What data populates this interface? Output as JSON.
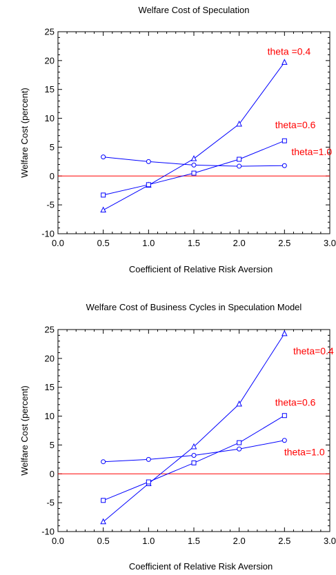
{
  "chart_data": [
    {
      "type": "line",
      "title": "Welfare Cost of Speculation",
      "xlabel": "Coefficient of Relative Risk Aversion",
      "ylabel": "Welfare Cost  (percent)",
      "xlim": [
        0.0,
        3.0
      ],
      "ylim": [
        -10,
        25
      ],
      "x_ticks": [
        "0.0",
        "0.5",
        "1.0",
        "1.5",
        "2.0",
        "2.5",
        "3.0"
      ],
      "y_ticks": [
        "-10",
        "-5",
        "0",
        "5",
        "10",
        "15",
        "20",
        "25"
      ],
      "grid": false,
      "zero_line": {
        "y": 0,
        "color": "#ff0000"
      },
      "series_color": "#0000ff",
      "series": [
        {
          "marker": "triangle",
          "x": [
            0.5,
            1.0,
            1.5,
            2.0,
            2.5
          ],
          "y": [
            -5.9,
            -1.6,
            3.0,
            9.0,
            19.7
          ]
        },
        {
          "marker": "square",
          "x": [
            0.5,
            1.0,
            1.5,
            2.0,
            2.5
          ],
          "y": [
            -3.3,
            -1.5,
            0.5,
            2.9,
            6.1
          ]
        },
        {
          "marker": "circle",
          "x": [
            0.5,
            1.0,
            1.5,
            2.0,
            2.5
          ],
          "y": [
            3.3,
            2.5,
            1.9,
            1.7,
            1.8
          ]
        }
      ],
      "annotations": [
        {
          "text": "theta =0.4",
          "x": 2.55,
          "y": 21.0
        },
        {
          "text": "theta=0.6",
          "x": 2.62,
          "y": 8.3
        },
        {
          "text": "theta=1.0",
          "x": 2.8,
          "y": 3.6
        }
      ]
    },
    {
      "type": "line",
      "title": "Welfare Cost of Business Cycles in Speculation Model",
      "xlabel": "Coefficient of Relative Risk Aversion",
      "ylabel": "Welfare Cost  (percent)",
      "xlim": [
        0.0,
        3.0
      ],
      "ylim": [
        -10,
        25
      ],
      "x_ticks": [
        "0.0",
        "0.5",
        "1.0",
        "1.5",
        "2.0",
        "2.5",
        "3.0"
      ],
      "y_ticks": [
        "-10",
        "-5",
        "0",
        "5",
        "10",
        "15",
        "20",
        "25"
      ],
      "grid": false,
      "zero_line": {
        "y": 0,
        "color": "#ff0000"
      },
      "series_color": "#0000ff",
      "series": [
        {
          "marker": "triangle",
          "x": [
            0.5,
            1.0,
            1.5,
            2.0,
            2.5
          ],
          "y": [
            -8.3,
            -1.7,
            4.7,
            12.1,
            24.3
          ]
        },
        {
          "marker": "square",
          "x": [
            0.5,
            1.0,
            1.5,
            2.0,
            2.5
          ],
          "y": [
            -4.6,
            -1.4,
            1.9,
            5.4,
            10.1
          ]
        },
        {
          "marker": "circle",
          "x": [
            0.5,
            1.0,
            1.5,
            2.0,
            2.5
          ],
          "y": [
            2.1,
            2.5,
            3.2,
            4.3,
            5.8
          ]
        }
      ],
      "annotations": [
        {
          "text": "theta=0.4",
          "x": 2.82,
          "y": 20.7
        },
        {
          "text": "theta=0.6",
          "x": 2.62,
          "y": 11.8
        },
        {
          "text": "theta=1.0",
          "x": 2.72,
          "y": 3.2
        }
      ]
    }
  ]
}
